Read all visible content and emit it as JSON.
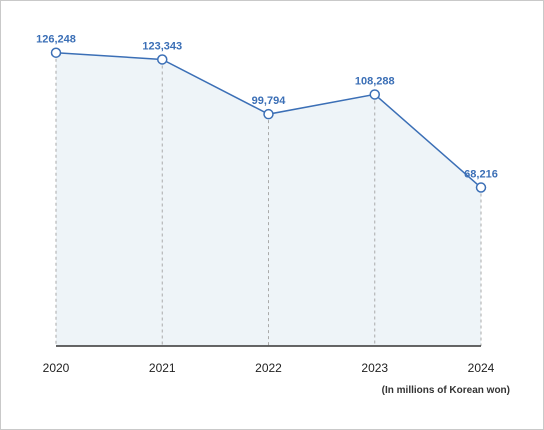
{
  "chart_data": {
    "type": "area",
    "categories": [
      "2020",
      "2021",
      "2022",
      "2023",
      "2024"
    ],
    "values": [
      126248,
      123343,
      99794,
      108288,
      68216
    ],
    "data_labels": [
      "126,248",
      "123,343",
      "99,794",
      "108,288",
      "68,216"
    ],
    "title": "",
    "xlabel": "",
    "ylabel": "",
    "unit_note": "(In millions of Korean won)",
    "ylim": [
      0,
      130000
    ],
    "grid": false,
    "colors": {
      "line": "#3b6fb6",
      "fill": "#eef4f8",
      "label": "#3b6fb6",
      "guide": "#aaaaaa",
      "axis": "#333333"
    }
  }
}
